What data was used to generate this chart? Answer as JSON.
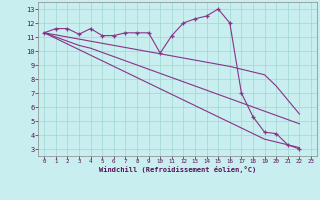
{
  "background_color": "#c8eef0",
  "grid_color": "#a0d8d0",
  "line_color": "#883388",
  "xlabel": "Windchill (Refroidissement éolien,°C)",
  "xlim": [
    -0.5,
    23.5
  ],
  "ylim": [
    2.5,
    13.5
  ],
  "yticks": [
    3,
    4,
    5,
    6,
    7,
    8,
    9,
    10,
    11,
    12,
    13
  ],
  "xticks": [
    0,
    1,
    2,
    3,
    4,
    5,
    6,
    7,
    8,
    9,
    10,
    11,
    12,
    13,
    14,
    15,
    16,
    17,
    18,
    19,
    20,
    21,
    22,
    23
  ],
  "series": [
    {
      "x": [
        0,
        1,
        2,
        3,
        4,
        5,
        6,
        7,
        8,
        9,
        10,
        11,
        12,
        13,
        14,
        15,
        16,
        17,
        18,
        19,
        20,
        21,
        22
      ],
      "y": [
        11.3,
        11.6,
        11.6,
        11.2,
        11.6,
        11.1,
        11.1,
        11.3,
        11.3,
        11.3,
        9.85,
        11.1,
        12.0,
        12.3,
        12.5,
        13.0,
        12.0,
        7.0,
        5.3,
        4.2,
        4.1,
        3.3,
        3.0
      ],
      "marker": "+"
    },
    {
      "x": [
        0,
        1,
        2,
        3,
        4,
        5,
        6,
        7,
        8,
        9,
        10,
        11,
        12,
        13,
        14,
        15,
        16,
        17,
        18,
        19,
        20,
        21,
        22
      ],
      "y": [
        11.3,
        11.15,
        11.0,
        10.85,
        10.7,
        10.55,
        10.4,
        10.25,
        10.1,
        9.95,
        9.8,
        9.65,
        9.5,
        9.35,
        9.2,
        9.05,
        8.9,
        8.7,
        8.5,
        8.3,
        7.5,
        6.5,
        5.5
      ],
      "marker": null
    },
    {
      "x": [
        0,
        1,
        2,
        3,
        4,
        5,
        6,
        7,
        8,
        9,
        10,
        11,
        12,
        13,
        14,
        15,
        16,
        17,
        18,
        19,
        20,
        21,
        22
      ],
      "y": [
        11.3,
        11.0,
        10.7,
        10.4,
        10.2,
        9.9,
        9.6,
        9.3,
        9.0,
        8.7,
        8.4,
        8.1,
        7.8,
        7.5,
        7.2,
        6.9,
        6.6,
        6.3,
        6.0,
        5.7,
        5.4,
        5.1,
        4.8
      ],
      "marker": null
    },
    {
      "x": [
        0,
        1,
        2,
        3,
        4,
        5,
        6,
        7,
        8,
        9,
        10,
        11,
        12,
        13,
        14,
        15,
        16,
        17,
        18,
        19,
        20,
        21,
        22
      ],
      "y": [
        11.3,
        10.9,
        10.5,
        10.1,
        9.7,
        9.3,
        8.9,
        8.5,
        8.1,
        7.7,
        7.3,
        6.9,
        6.5,
        6.1,
        5.7,
        5.3,
        4.9,
        4.5,
        4.1,
        3.7,
        3.5,
        3.3,
        3.1
      ],
      "marker": null
    }
  ]
}
